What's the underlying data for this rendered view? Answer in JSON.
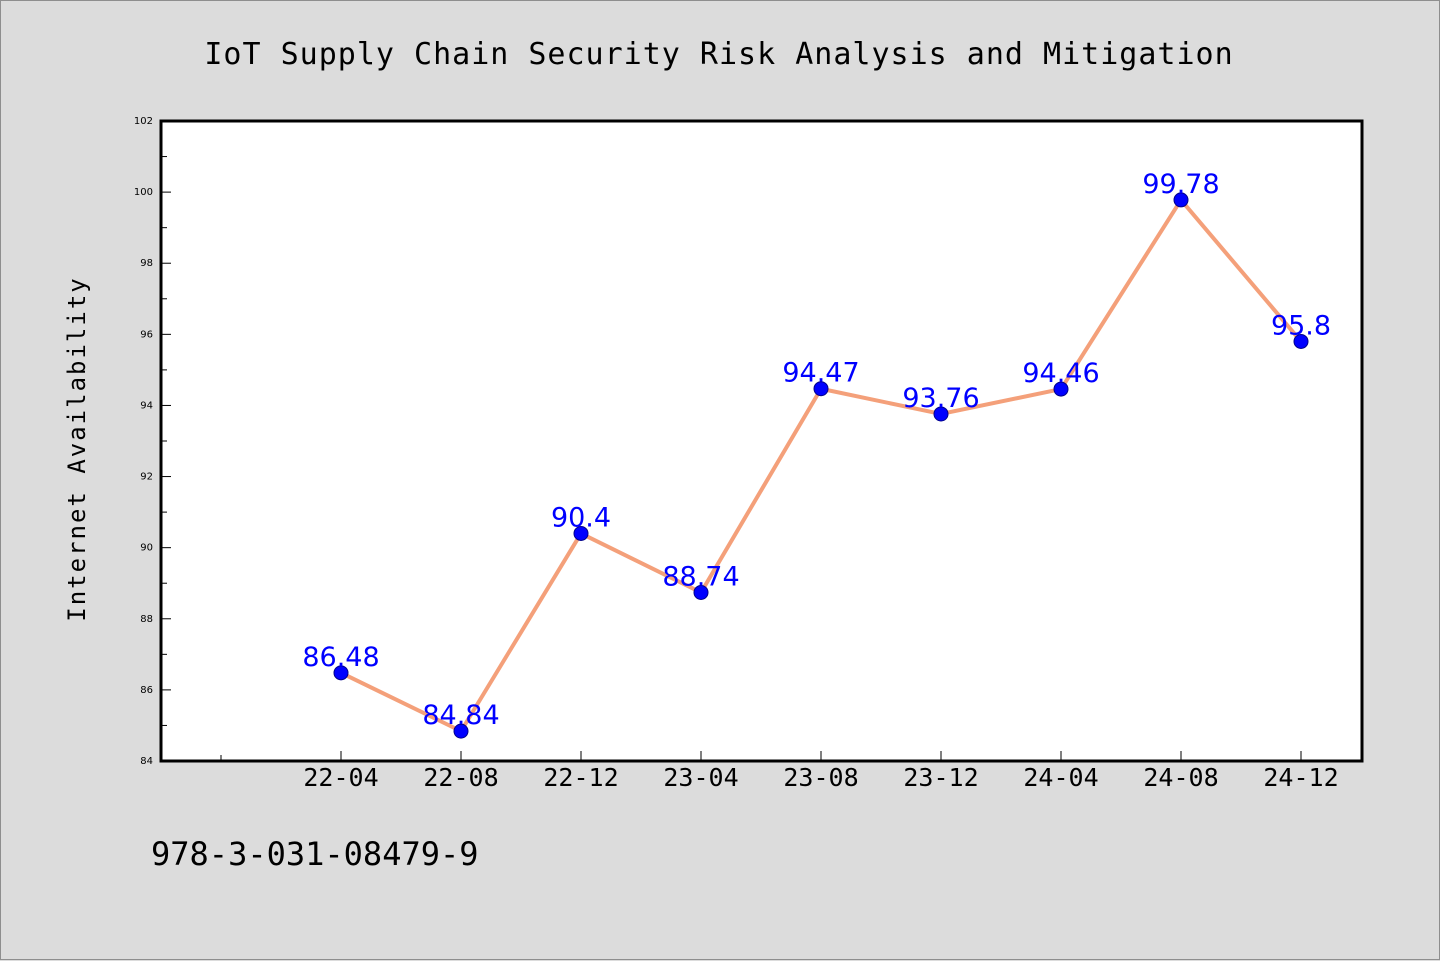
{
  "chart_data": {
    "type": "line",
    "title": "IoT Supply Chain Security Risk Analysis and Mitigation",
    "xlabel": "",
    "ylabel": "Internet Availability",
    "categories": [
      "22-04",
      "22-08",
      "22-12",
      "23-04",
      "23-08",
      "23-12",
      "24-04",
      "24-08",
      "24-12"
    ],
    "series": [
      {
        "values": [
          86.48,
          84.84,
          90.4,
          88.74,
          94.47,
          93.76,
          94.46,
          99.78,
          95.8
        ],
        "data_labels": [
          "86.48",
          "84.84",
          "90.4",
          "88.74",
          "94.47",
          "93.76",
          "94.46",
          "99.78",
          "95.8"
        ]
      }
    ],
    "ylim": [
      84,
      102
    ],
    "yticks": [
      "84",
      "86",
      "88",
      "90",
      "92",
      "94",
      "96",
      "98",
      "100",
      "102"
    ],
    "grid": false,
    "legend": "none",
    "colors": {
      "line": "#f4a07a",
      "marker": "#0000ff",
      "data_label": "#0000ff",
      "background": "#dcdcdc",
      "plot_area": "#ffffff"
    }
  },
  "footer": {
    "text": "978-3-031-08479-9"
  }
}
